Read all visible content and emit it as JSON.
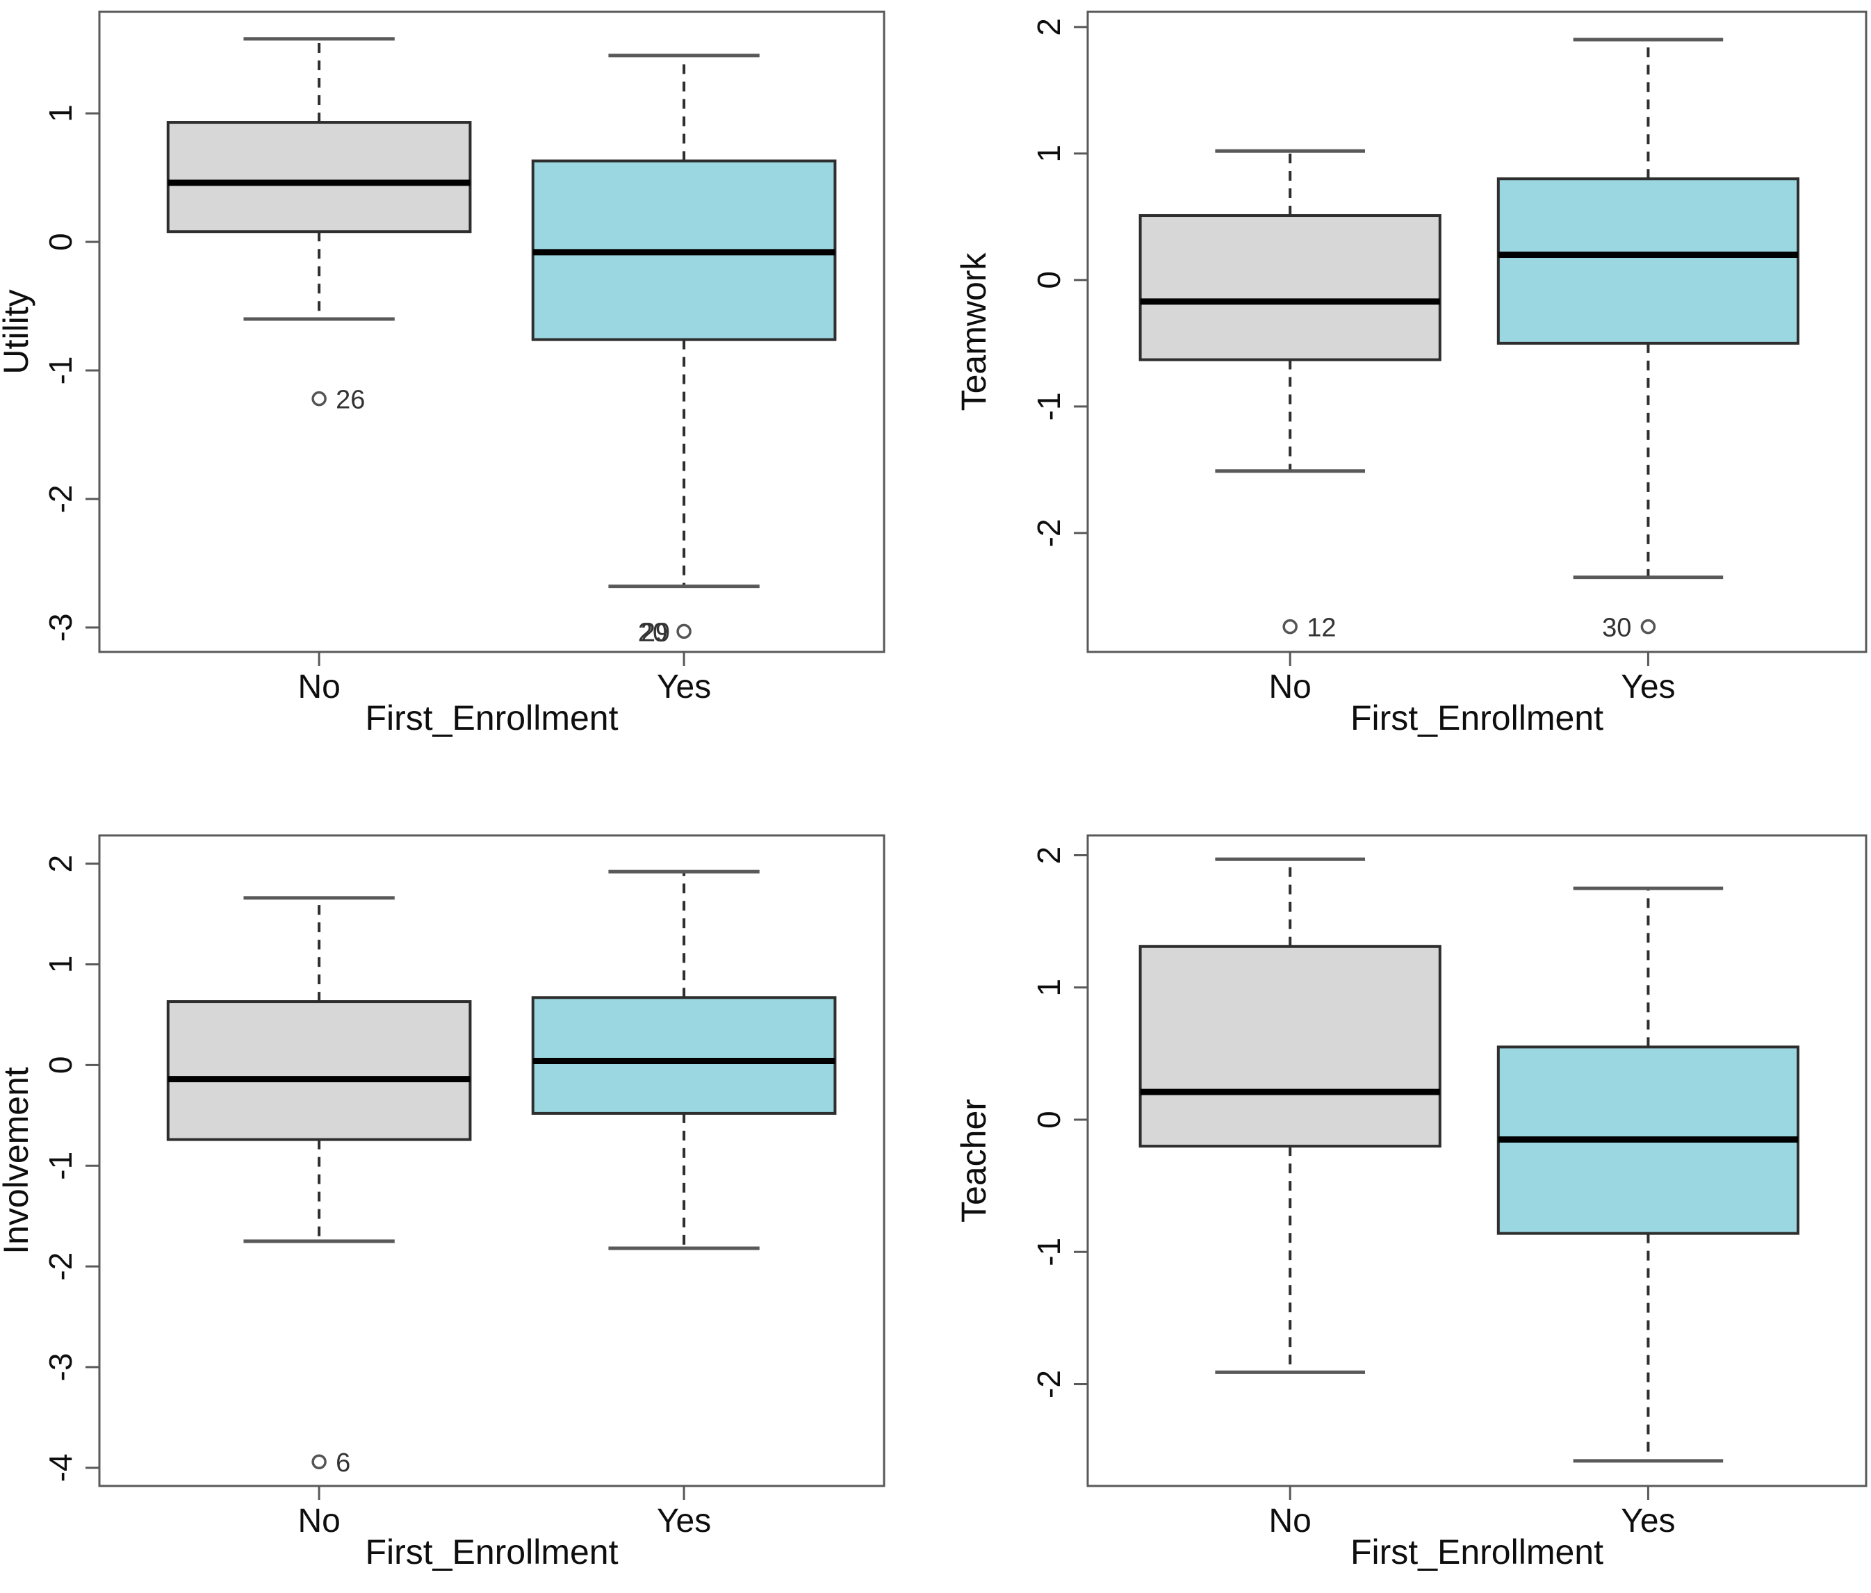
{
  "figure": {
    "background": "#ffffff",
    "description": "Four boxplots comparing factor scores by First_Enrollment"
  },
  "colors": {
    "no_box_fill": "#d7d7d7",
    "yes_box_fill": "#9bd7e1",
    "box_border": "#2e2e2e",
    "median_line": "#000000",
    "axis_line": "#595959",
    "whisker_line": "#2e2e2e",
    "tick_text": "#0e0e0e",
    "outlier_label_text": "#333333",
    "outlier_point_stroke": "#555555"
  },
  "chart_data": [
    {
      "type": "boxplot",
      "title": "",
      "ylabel": "Utility",
      "xlabel": "First_Enrollment",
      "categories": [
        "No",
        "Yes"
      ],
      "ylim": [
        -3.19,
        1.79
      ],
      "yticks": [
        1,
        0,
        -1,
        -2,
        -3
      ],
      "grid": false,
      "series": [
        {
          "category": "No",
          "fill": "no",
          "whisker_low": -0.6,
          "q1": 0.08,
          "median": 0.46,
          "q3": 0.93,
          "whisker_high": 1.58,
          "outliers": [
            {
              "value": -1.22,
              "labels": [
                "26"
              ],
              "label_side": "right"
            }
          ]
        },
        {
          "category": "Yes",
          "fill": "yes",
          "whisker_low": -2.68,
          "q1": -0.76,
          "median": -0.08,
          "q3": 0.63,
          "whisker_high": 1.45,
          "outliers": [
            {
              "value": -3.03,
              "labels": [
                "20",
                "29"
              ],
              "label_side": "left"
            }
          ]
        }
      ]
    },
    {
      "type": "boxplot",
      "title": "",
      "ylabel": "Teamwork",
      "xlabel": "First_Enrollment",
      "categories": [
        "No",
        "Yes"
      ],
      "ylim": [
        -2.94,
        2.12
      ],
      "yticks": [
        2,
        1,
        0,
        -1,
        -2
      ],
      "grid": false,
      "series": [
        {
          "category": "No",
          "fill": "no",
          "whisker_low": -1.51,
          "q1": -0.63,
          "median": -0.17,
          "q3": 0.51,
          "whisker_high": 1.02,
          "outliers": [
            {
              "value": -2.74,
              "labels": [
                "12"
              ],
              "label_side": "right"
            }
          ]
        },
        {
          "category": "Yes",
          "fill": "yes",
          "whisker_low": -2.35,
          "q1": -0.5,
          "median": 0.2,
          "q3": 0.8,
          "whisker_high": 1.9,
          "outliers": [
            {
              "value": -2.74,
              "labels": [
                "30"
              ],
              "label_side": "left"
            }
          ]
        }
      ]
    },
    {
      "type": "boxplot",
      "title": "",
      "ylabel": "Involvement",
      "xlabel": "First_Enrollment",
      "categories": [
        "No",
        "Yes"
      ],
      "ylim": [
        -4.18,
        2.28
      ],
      "yticks": [
        2,
        1,
        0,
        -1,
        -2,
        -3,
        -4
      ],
      "grid": false,
      "series": [
        {
          "category": "No",
          "fill": "no",
          "whisker_low": -1.75,
          "q1": -0.74,
          "median": -0.14,
          "q3": 0.63,
          "whisker_high": 1.66,
          "outliers": [
            {
              "value": -3.94,
              "labels": [
                "6"
              ],
              "label_side": "right"
            }
          ]
        },
        {
          "category": "Yes",
          "fill": "yes",
          "whisker_low": -1.82,
          "q1": -0.48,
          "median": 0.04,
          "q3": 0.67,
          "whisker_high": 1.92,
          "outliers": []
        }
      ]
    },
    {
      "type": "boxplot",
      "title": "",
      "ylabel": "Teacher",
      "xlabel": "First_Enrollment",
      "categories": [
        "No",
        "Yes"
      ],
      "ylim": [
        -2.77,
        2.15
      ],
      "yticks": [
        2,
        1,
        0,
        -1,
        -2
      ],
      "grid": false,
      "series": [
        {
          "category": "No",
          "fill": "no",
          "whisker_low": -1.91,
          "q1": -0.2,
          "median": 0.21,
          "q3": 1.31,
          "whisker_high": 1.97,
          "outliers": []
        },
        {
          "category": "Yes",
          "fill": "yes",
          "whisker_low": -2.58,
          "q1": -0.86,
          "median": -0.15,
          "q3": 0.55,
          "whisker_high": 1.75,
          "outliers": []
        }
      ]
    }
  ]
}
